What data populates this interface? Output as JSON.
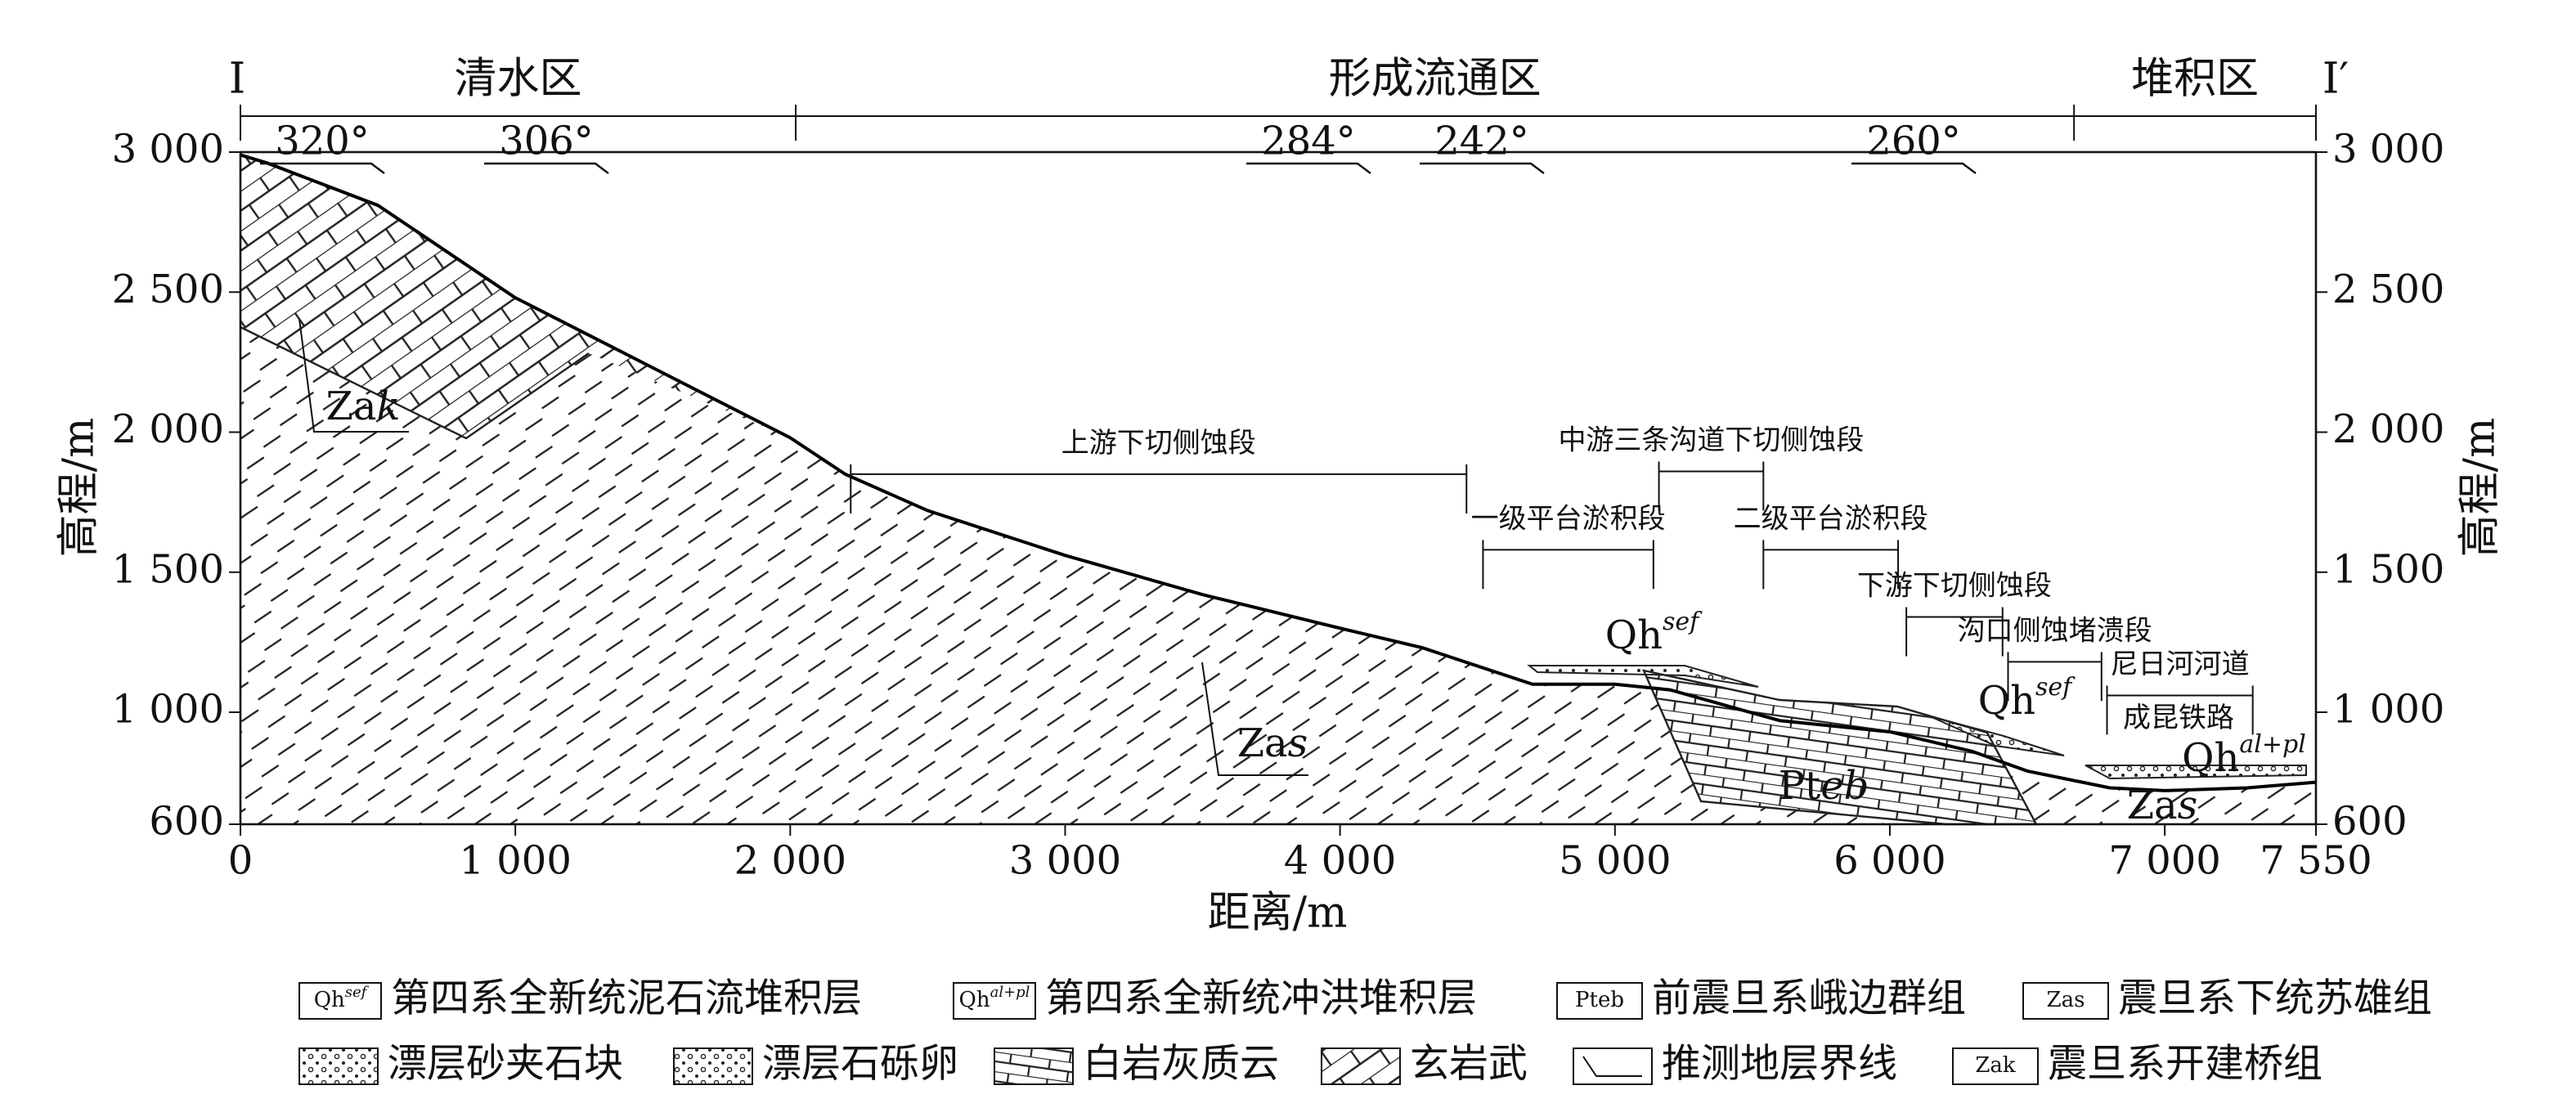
{
  "chart_data": {
    "type": "line",
    "section_start": "I",
    "section_end": "I′",
    "x_label": "距离/m",
    "y_label": "高程/m",
    "xlim": [
      0,
      7550
    ],
    "ylim": [
      600,
      3000
    ],
    "xticks": [
      0,
      {
        "value": 1000,
        "label": "1 000"
      },
      {
        "value": 2000,
        "label": "2 000"
      },
      {
        "value": 3000,
        "label": "3 000"
      },
      {
        "value": 4000,
        "label": "4 000"
      },
      {
        "value": 5000,
        "label": "5 000"
      },
      {
        "value": 6000,
        "label": "6 000"
      },
      {
        "value": 7000,
        "label": "7 000"
      },
      {
        "value": 7550,
        "label": "7 550"
      }
    ],
    "yticks": [
      600,
      {
        "value": 1000,
        "label": "1 000"
      },
      {
        "value": 1500,
        "label": "1 500"
      },
      {
        "value": 2000,
        "label": "2 000"
      },
      {
        "value": 2500,
        "label": "2 500"
      },
      {
        "value": 3000,
        "label": "3 000"
      }
    ],
    "x": [
      0,
      100,
      500,
      1000,
      1500,
      2000,
      2200,
      2500,
      3000,
      3500,
      4000,
      4300,
      4700,
      5000,
      5200,
      5600,
      6000,
      6300,
      6500,
      6800,
      7000,
      7300,
      7550
    ],
    "values": [
      2990,
      2960,
      2810,
      2480,
      2230,
      1980,
      1850,
      1720,
      1560,
      1420,
      1300,
      1230,
      1100,
      1100,
      1080,
      970,
      930,
      860,
      790,
      730,
      720,
      730,
      750
    ],
    "color": "#000000",
    "zones": [
      {
        "label": "清水区",
        "range": [
          0,
          2020
        ]
      },
      {
        "label": "形成流通区",
        "range": [
          2020,
          6670
        ]
      },
      {
        "label": "堆积区",
        "range": [
          6670,
          7550
        ]
      }
    ],
    "dips": [
      "320°",
      "306°",
      "284°",
      "242°",
      "260°"
    ],
    "sections": [
      {
        "label": "上游下切侧蚀段",
        "range": [
          2220,
          4460
        ],
        "elevation": 1850
      },
      {
        "label": "中游三条沟道下切侧蚀段",
        "range": [
          5160,
          5540
        ],
        "elevation": 1860
      },
      {
        "label": "一级平台淤积段",
        "range": [
          4520,
          5140
        ],
        "elevation": 1580
      },
      {
        "label": "二级平台淤积段",
        "range": [
          5540,
          6030
        ],
        "elevation": 1580
      },
      {
        "label": "下游下切侧蚀段",
        "range": [
          6060,
          6410
        ],
        "elevation": 1340
      },
      {
        "label": "沟口侧蚀堵溃段",
        "range": [
          6430,
          6770
        ],
        "elevation": 1180
      },
      {
        "label": "尼日河河道",
        "range": [
          6790,
          7320
        ],
        "elevation": 1060
      }
    ],
    "railway": "成昆铁路",
    "formations": [
      {
        "code": "Za",
        "italic": "k"
      },
      {
        "code": "Za",
        "italic": "s"
      },
      {
        "code": "Pt",
        "italic": "eb"
      },
      {
        "code": "Qh",
        "sup": "sef"
      },
      {
        "code": "Qh",
        "sup": "sef"
      },
      {
        "code": "Qh",
        "sup": "al+pl"
      },
      {
        "code": "Za",
        "italic": "s"
      }
    ],
    "legend": [
      {
        "code": "Qh",
        "sup": "sef",
        "label": "第四系全新统泥石流堆积层"
      },
      {
        "code": "Qh",
        "sup": "al+pl",
        "label": "第四系全新统冲洪堆积层"
      },
      {
        "code": "Pteb",
        "label": "前震旦系峨边群组"
      },
      {
        "code": "Zas",
        "label": "震旦系下统苏雄组"
      },
      {
        "label": "漂层砂夹石块"
      },
      {
        "label": "漂层石砾卵"
      },
      {
        "label": "白岩灰质云"
      },
      {
        "label": "玄岩武"
      },
      {
        "label": "推测地层界线"
      },
      {
        "code": "Zak",
        "label": "震旦系开建桥组"
      }
    ]
  }
}
